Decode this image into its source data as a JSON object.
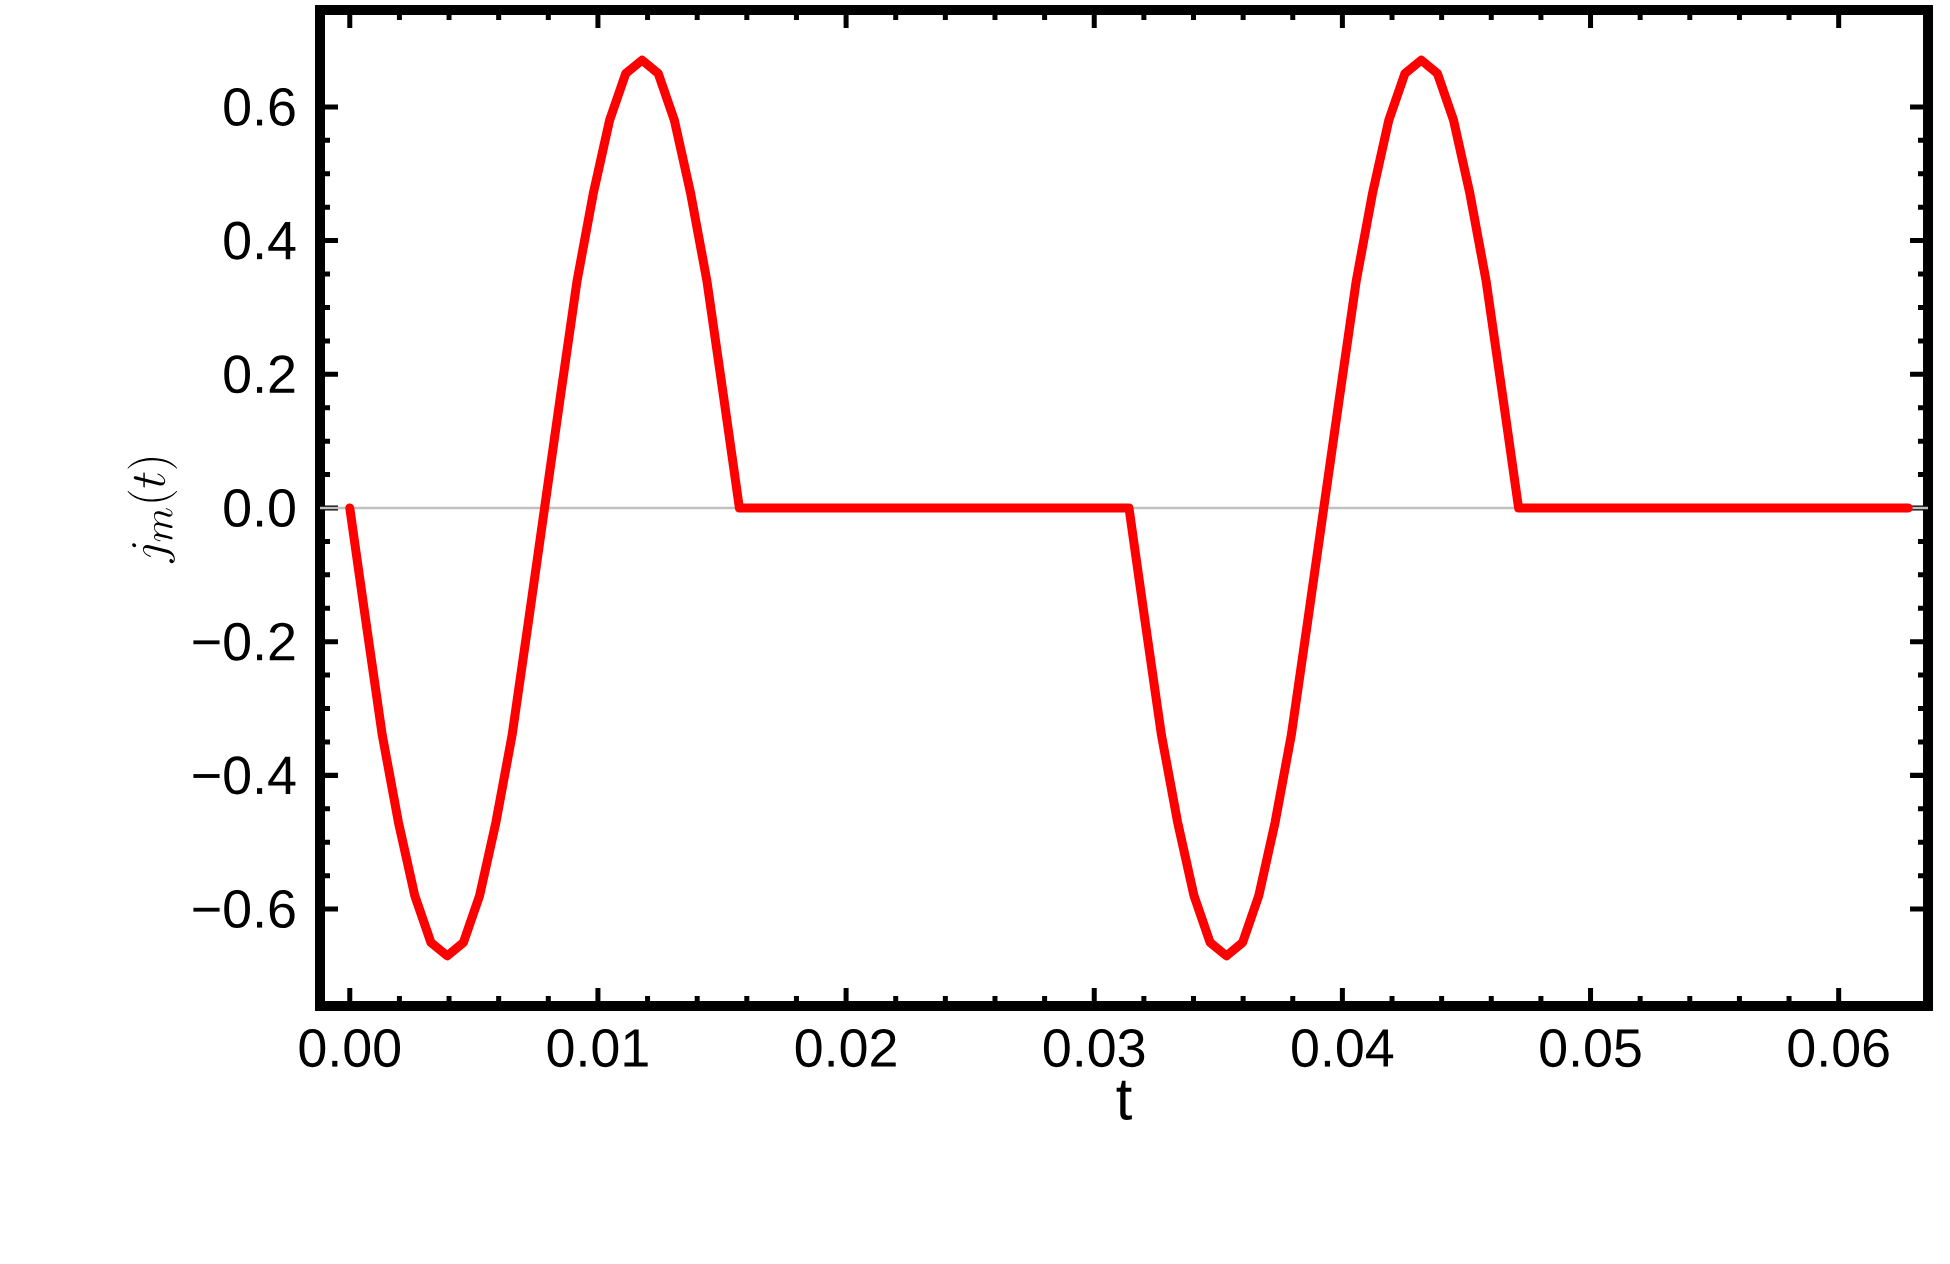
{
  "chart_data": {
    "type": "line",
    "xlabel": "t",
    "ylabel": "j_m(t)",
    "xlim": [
      -0.0012,
      0.0636
    ],
    "ylim": [
      -0.745,
      0.745
    ],
    "xticks": [
      {
        "value": 0,
        "label": "0.00"
      },
      {
        "value": 0.01,
        "label": "0.01"
      },
      {
        "value": 0.02,
        "label": "0.02"
      },
      {
        "value": 0.03,
        "label": "0.03"
      },
      {
        "value": 0.04,
        "label": "0.04"
      },
      {
        "value": 0.05,
        "label": "0.05"
      },
      {
        "value": 0.06,
        "label": "0.06"
      }
    ],
    "yticks": [
      {
        "value": -0.6,
        "label": "−0.6"
      },
      {
        "value": -0.4,
        "label": "−0.4"
      },
      {
        "value": -0.2,
        "label": "−0.2"
      },
      {
        "value": 0,
        "label": "0.0"
      },
      {
        "value": 0.2,
        "label": "0.2"
      },
      {
        "value": 0.4,
        "label": "0.4"
      },
      {
        "value": 0.6,
        "label": "0.6"
      }
    ],
    "ref_lines": [
      {
        "axis": "y",
        "value": 0,
        "color": "#c0c0c0"
      }
    ],
    "series": [
      {
        "color": "#ff0000",
        "x": [
          0,
          0.00065,
          0.00131,
          0.00196,
          0.00262,
          0.00327,
          0.00393,
          0.00458,
          0.00523,
          0.00589,
          0.00654,
          0.0072,
          0.00785,
          0.0085,
          0.00916,
          0.00981,
          0.01047,
          0.01112,
          0.01178,
          0.01243,
          0.01308,
          0.01374,
          0.01439,
          0.01505,
          0.0157,
          0.0314,
          0.03205,
          0.03271,
          0.03336,
          0.03402,
          0.03467,
          0.03533,
          0.03598,
          0.03663,
          0.03729,
          0.03794,
          0.0386,
          0.03925,
          0.0399,
          0.04056,
          0.04121,
          0.04187,
          0.04252,
          0.04318,
          0.04383,
          0.04448,
          0.04514,
          0.04579,
          0.04645,
          0.0471,
          0.0628
        ],
        "values": [
          0,
          -0.17,
          -0.34,
          -0.47,
          -0.58,
          -0.65,
          -0.67,
          -0.65,
          -0.58,
          -0.47,
          -0.34,
          -0.17,
          0,
          0.17,
          0.34,
          0.47,
          0.58,
          0.65,
          0.67,
          0.65,
          0.58,
          0.47,
          0.34,
          0.17,
          0,
          0,
          -0.17,
          -0.34,
          -0.47,
          -0.58,
          -0.65,
          -0.67,
          -0.65,
          -0.58,
          -0.47,
          -0.34,
          -0.17,
          0,
          0.17,
          0.34,
          0.47,
          0.58,
          0.65,
          0.67,
          0.65,
          0.58,
          0.47,
          0.34,
          0.17,
          0,
          0
        ]
      }
    ]
  }
}
